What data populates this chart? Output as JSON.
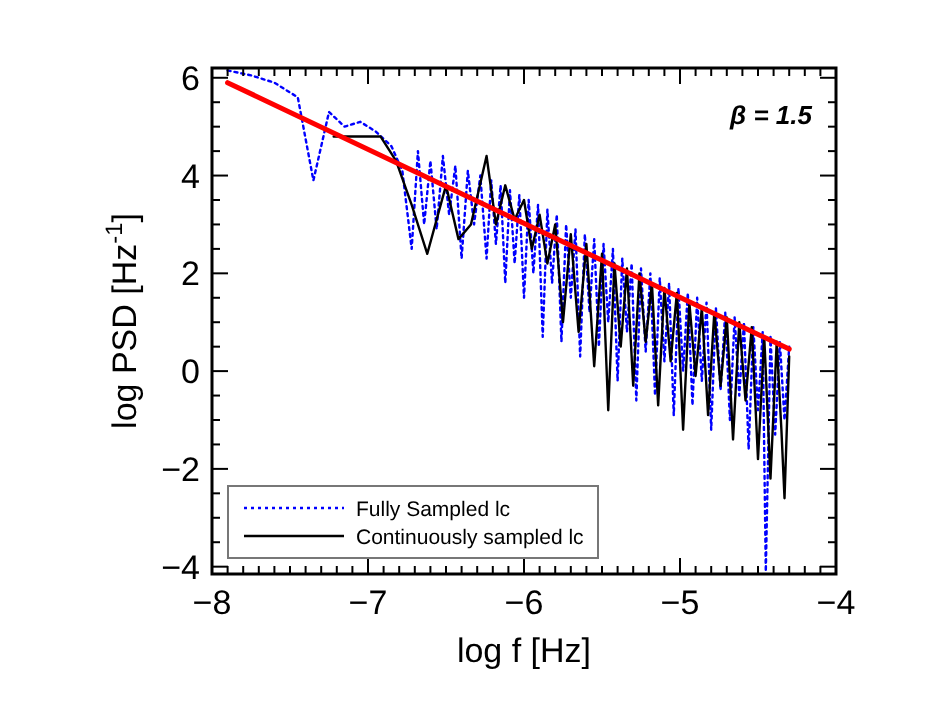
{
  "chart_data": {
    "type": "line",
    "xlabel": "log f [Hz]",
    "ylabel": "log PSD [Hz$^{-1}$]",
    "annotations": [
      "β = 1.5"
    ],
    "xlim": [
      -8,
      -4
    ],
    "ylim": [
      -4.15,
      6.2
    ],
    "xticks": [
      -8,
      {
        "value": -7.9,
        "label": null
      },
      {
        "value": -7.8,
        "label": null
      },
      {
        "value": -7.7,
        "label": null
      },
      {
        "value": -7.6,
        "label": null
      },
      {
        "value": -7.5,
        "label": null
      },
      {
        "value": -7.4,
        "label": null
      },
      {
        "value": -7.3,
        "label": null
      },
      {
        "value": -7.2,
        "label": null
      },
      {
        "value": -7.1,
        "label": null
      },
      -7,
      {
        "value": -6.9,
        "label": null
      },
      {
        "value": -6.8,
        "label": null
      },
      {
        "value": -6.7,
        "label": null
      },
      {
        "value": -6.6,
        "label": null
      },
      {
        "value": -6.5,
        "label": null
      },
      {
        "value": -6.4,
        "label": null
      },
      {
        "value": -6.3,
        "label": null
      },
      {
        "value": -6.2,
        "label": null
      },
      {
        "value": -6.1,
        "label": null
      },
      -6,
      {
        "value": -5.9,
        "label": null
      },
      {
        "value": -5.8,
        "label": null
      },
      {
        "value": -5.7,
        "label": null
      },
      {
        "value": -5.6,
        "label": null
      },
      {
        "value": -5.5,
        "label": null
      },
      {
        "value": -5.4,
        "label": null
      },
      {
        "value": -5.3,
        "label": null
      },
      {
        "value": -5.2,
        "label": null
      },
      {
        "value": -5.1,
        "label": null
      },
      -5,
      {
        "value": -4.9,
        "label": null
      },
      {
        "value": -4.8,
        "label": null
      },
      {
        "value": -4.7,
        "label": null
      },
      {
        "value": -4.6,
        "label": null
      },
      {
        "value": -4.5,
        "label": null
      },
      {
        "value": -4.4,
        "label": null
      },
      {
        "value": -4.3,
        "label": null
      },
      {
        "value": -4.2,
        "label": null
      },
      {
        "value": -4.1,
        "label": null
      },
      -4
    ],
    "yticks": [
      -4,
      {
        "value": -3.5,
        "label": null
      },
      {
        "value": -3,
        "label": null
      },
      {
        "value": -2.5,
        "label": null
      },
      -2,
      {
        "value": -1.5,
        "label": null
      },
      {
        "value": -1,
        "label": null
      },
      {
        "value": -0.5,
        "label": null
      },
      0,
      {
        "value": 0.5,
        "label": null
      },
      {
        "value": 1,
        "label": null
      },
      {
        "value": 1.5,
        "label": null
      },
      2,
      {
        "value": 2.5,
        "label": null
      },
      {
        "value": 3,
        "label": null
      },
      {
        "value": 3.5,
        "label": null
      },
      4,
      {
        "value": 4.5,
        "label": null
      },
      {
        "value": 5,
        "label": null
      },
      {
        "value": 5.5,
        "label": null
      },
      6
    ],
    "grid": false,
    "legend": "bottom left",
    "series": [
      {
        "name": "Fully Sampled lc",
        "color": "#0000ff",
        "line_style": "dotted",
        "x": [
          -7.9,
          -7.75,
          -7.6,
          -7.45,
          -7.35,
          -7.25,
          -7.15,
          -7.05,
          -6.95,
          -6.85,
          -6.78,
          -6.72,
          -6.68,
          -6.64,
          -6.6,
          -6.56,
          -6.52,
          -6.48,
          -6.44,
          -6.4,
          -6.36,
          -6.32,
          -6.28,
          -6.24,
          -6.21,
          -6.18,
          -6.15,
          -6.12,
          -6.09,
          -6.06,
          -6.03,
          -6.0,
          -5.97,
          -5.94,
          -5.91,
          -5.88,
          -5.85,
          -5.82,
          -5.79,
          -5.76,
          -5.73,
          -5.7,
          -5.67,
          -5.64,
          -5.61,
          -5.58,
          -5.55,
          -5.52,
          -5.49,
          -5.46,
          -5.43,
          -5.4,
          -5.37,
          -5.34,
          -5.31,
          -5.28,
          -5.25,
          -5.22,
          -5.19,
          -5.16,
          -5.13,
          -5.1,
          -5.07,
          -5.04,
          -5.01,
          -4.98,
          -4.95,
          -4.92,
          -4.89,
          -4.86,
          -4.83,
          -4.8,
          -4.77,
          -4.74,
          -4.71,
          -4.68,
          -4.65,
          -4.62,
          -4.59,
          -4.56,
          -4.53,
          -4.5,
          -4.47,
          -4.45,
          -4.42,
          -4.39,
          -4.36,
          -4.33,
          -4.3
        ],
        "values": [
          6.15,
          6.05,
          5.9,
          5.6,
          3.9,
          5.3,
          5.0,
          5.1,
          4.9,
          4.6,
          4.1,
          2.5,
          4.5,
          3.0,
          4.3,
          2.9,
          4.4,
          3.2,
          4.2,
          2.3,
          4.1,
          3.0,
          4.0,
          2.3,
          3.9,
          2.6,
          3.8,
          1.8,
          3.7,
          2.2,
          3.6,
          1.5,
          3.5,
          2.0,
          3.4,
          0.7,
          3.3,
          1.8,
          3.2,
          0.6,
          3.0,
          1.5,
          2.9,
          0.3,
          2.8,
          1.2,
          2.7,
          0.5,
          2.6,
          1.0,
          2.5,
          -0.2,
          2.3,
          0.8,
          2.2,
          -0.6,
          2.1,
          0.4,
          2.0,
          -0.5,
          1.9,
          0.2,
          1.8,
          -0.9,
          1.7,
          0.0,
          1.6,
          -0.7,
          1.5,
          -0.2,
          1.4,
          -1.2,
          1.3,
          -0.4,
          1.2,
          -1.0,
          1.1,
          -0.5,
          1.0,
          -1.6,
          0.9,
          -0.8,
          0.8,
          -4.1,
          0.7,
          -1.3,
          0.6,
          -1.0,
          0.5
        ]
      },
      {
        "name": "Continuously sampled lc",
        "color": "#000000",
        "line_style": "solid",
        "x": [
          -7.22,
          -6.92,
          -6.82,
          -6.72,
          -6.62,
          -6.5,
          -6.42,
          -6.34,
          -6.24,
          -6.18,
          -6.12,
          -6.06,
          -6.0,
          -5.95,
          -5.9,
          -5.85,
          -5.8,
          -5.75,
          -5.7,
          -5.65,
          -5.6,
          -5.55,
          -5.5,
          -5.46,
          -5.42,
          -5.38,
          -5.34,
          -5.3,
          -5.26,
          -5.22,
          -5.18,
          -5.14,
          -5.1,
          -5.06,
          -5.02,
          -4.98,
          -4.94,
          -4.9,
          -4.86,
          -4.82,
          -4.78,
          -4.74,
          -4.7,
          -4.66,
          -4.62,
          -4.58,
          -4.54,
          -4.5,
          -4.46,
          -4.42,
          -4.38,
          -4.35,
          -4.33,
          -4.3
        ],
        "values": [
          4.8,
          4.8,
          4.3,
          3.4,
          2.4,
          3.8,
          2.7,
          3.0,
          4.4,
          3.0,
          3.8,
          3.1,
          3.5,
          2.5,
          3.2,
          2.2,
          3.0,
          1.0,
          2.8,
          0.8,
          2.6,
          0.1,
          2.4,
          -0.8,
          2.2,
          0.5,
          2.1,
          -0.3,
          2.0,
          0.6,
          1.8,
          -0.7,
          1.7,
          0.2,
          1.6,
          -1.2,
          1.4,
          -0.1,
          1.3,
          -0.9,
          1.2,
          -0.3,
          1.1,
          -1.4,
          1.0,
          -0.6,
          0.9,
          -1.8,
          0.7,
          -2.2,
          0.6,
          -1.2,
          -2.6,
          0.3
        ]
      },
      {
        "color": "#ff0000",
        "line_style": "solid",
        "x": [
          -7.9,
          -4.3
        ],
        "values": [
          5.9,
          0.45
        ]
      }
    ]
  }
}
